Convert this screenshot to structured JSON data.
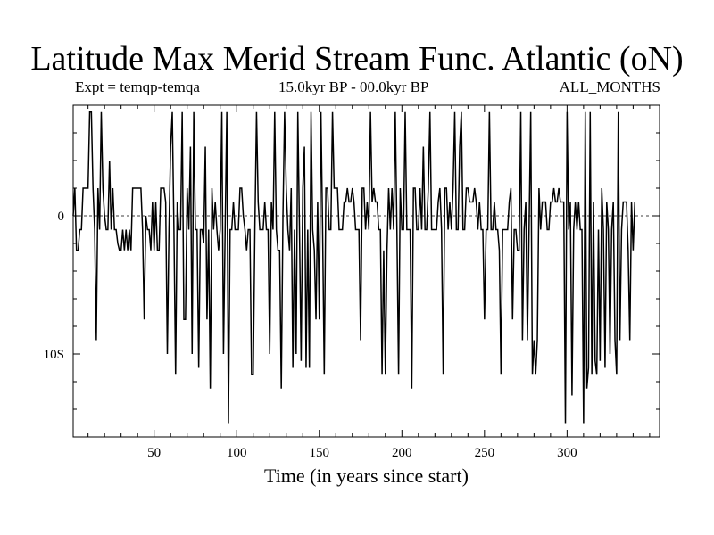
{
  "chart_data": {
    "type": "line",
    "title": "Latitude Max Merid Stream Func. Atlantic (oN)",
    "subtitle_left": "Expt = temqp-temqa",
    "subtitle_center": "15.0kyr BP - 00.0kyr BP",
    "subtitle_right": "ALL_MONTHS",
    "xlabel": "Time (in years since start)",
    "ylabel": "",
    "xlim": [
      1,
      356
    ],
    "ylim": [
      -16,
      8
    ],
    "x_ticks": [
      50,
      100,
      150,
      200,
      250,
      300
    ],
    "x_tick_labels": [
      "50",
      "100",
      "150",
      "200",
      "250",
      "300"
    ],
    "y_ticks": [
      0,
      -10
    ],
    "y_tick_labels": [
      "0",
      "10S"
    ],
    "zero_line": true,
    "grid": false,
    "series": [
      {
        "name": "temqp-temqa",
        "x_start": 1,
        "x_step": 1,
        "values": [
          0,
          2,
          -2.5,
          -2.5,
          -1,
          -1,
          2,
          2,
          2,
          2,
          7.5,
          7.5,
          2,
          -1,
          -9,
          2,
          -1,
          7.5,
          2,
          0,
          -1,
          -1,
          4,
          -1,
          2,
          -1,
          -1,
          -2,
          -2.5,
          -2.5,
          -1,
          -2.5,
          -1,
          -2.5,
          -1,
          -2.5,
          2,
          2,
          2,
          2,
          2,
          2,
          -1,
          -7.5,
          0,
          -1,
          -1,
          -2.5,
          1,
          -2.5,
          1,
          -2.5,
          -2.5,
          2,
          2,
          2,
          1,
          -10,
          -1,
          5,
          7.5,
          -1,
          -11.5,
          1,
          -1,
          -1,
          7.5,
          -7.5,
          -7.5,
          2,
          -1,
          5,
          -10,
          7.5,
          -1,
          -1,
          -11,
          -1,
          -1,
          -2,
          5,
          -7.5,
          -1,
          -12.5,
          2,
          -1,
          1,
          -1,
          -2.5,
          -1,
          7.5,
          -10,
          -1,
          7.5,
          -15,
          -1,
          -1,
          1,
          -1,
          -1,
          -1,
          2,
          2,
          0,
          -1,
          -2.5,
          -1,
          -1,
          -11.5,
          -11.5,
          -1,
          7.5,
          1,
          -1,
          -1,
          -1,
          1,
          -1,
          -1,
          -10,
          1,
          -1,
          7.5,
          -1,
          -2.5,
          -2.5,
          -12.5,
          0,
          7.5,
          2,
          -1,
          -2.5,
          2,
          -11,
          -1,
          -10,
          7.5,
          -1,
          -10.5,
          2,
          5,
          -11,
          -1,
          -11,
          7.5,
          -1,
          -2.5,
          -7.5,
          1,
          -7.5,
          7.5,
          -1,
          -11.5,
          2,
          2,
          -1,
          -1,
          7.5,
          2,
          2,
          2,
          -1,
          -1,
          -1,
          1,
          1,
          2,
          1,
          1,
          2,
          1,
          -1,
          -1,
          -1,
          -9,
          2,
          2,
          -1,
          1,
          -1,
          7.5,
          1,
          2,
          1,
          1,
          -1,
          -1,
          -11.5,
          -2.5,
          -11.5,
          -2.5,
          2,
          -1,
          2,
          -1,
          7.5,
          -1,
          -11.5,
          2,
          -1,
          -1,
          7.5,
          -1,
          -1,
          -1,
          -12.5,
          2,
          2,
          -1,
          -1,
          2,
          -1,
          5,
          -1,
          -1,
          2,
          7.5,
          -1,
          -1,
          -1,
          -1,
          1,
          2,
          -1,
          -11.5,
          2,
          2,
          -1,
          1,
          -1,
          2,
          7.5,
          -1,
          -1,
          5,
          7.5,
          -1,
          -1,
          2,
          2,
          1,
          1,
          1,
          2,
          1,
          -1,
          1,
          -1,
          -1,
          -7.5,
          -1,
          -1,
          7.5,
          -1,
          -1,
          1,
          -1,
          -1,
          -2.5,
          -11.5,
          -1,
          -1,
          -1,
          -1,
          1,
          2,
          -7.5,
          -1,
          -1,
          -2.5,
          -2.5,
          7.5,
          -9,
          -1,
          1,
          -9,
          -1,
          7.5,
          -11.5,
          -9,
          -11.5,
          -9,
          2,
          -1,
          1,
          1,
          1,
          -1,
          -1,
          1,
          1,
          2,
          1,
          1,
          2,
          1,
          1,
          1,
          -15,
          7.5,
          -1,
          1,
          -13,
          -1,
          1,
          -1,
          1,
          -1,
          -1,
          -15,
          7.5,
          -12.5,
          -11,
          7.5,
          -11.5,
          1,
          -10.5,
          -11.5,
          -1,
          -10.5,
          2,
          -1,
          -11,
          1,
          -1,
          -10,
          -1,
          1,
          -9,
          -11.5,
          7.5,
          -9,
          -1,
          1,
          1,
          1,
          -2.5,
          -9,
          1,
          -2.5,
          1
        ]
      }
    ]
  }
}
